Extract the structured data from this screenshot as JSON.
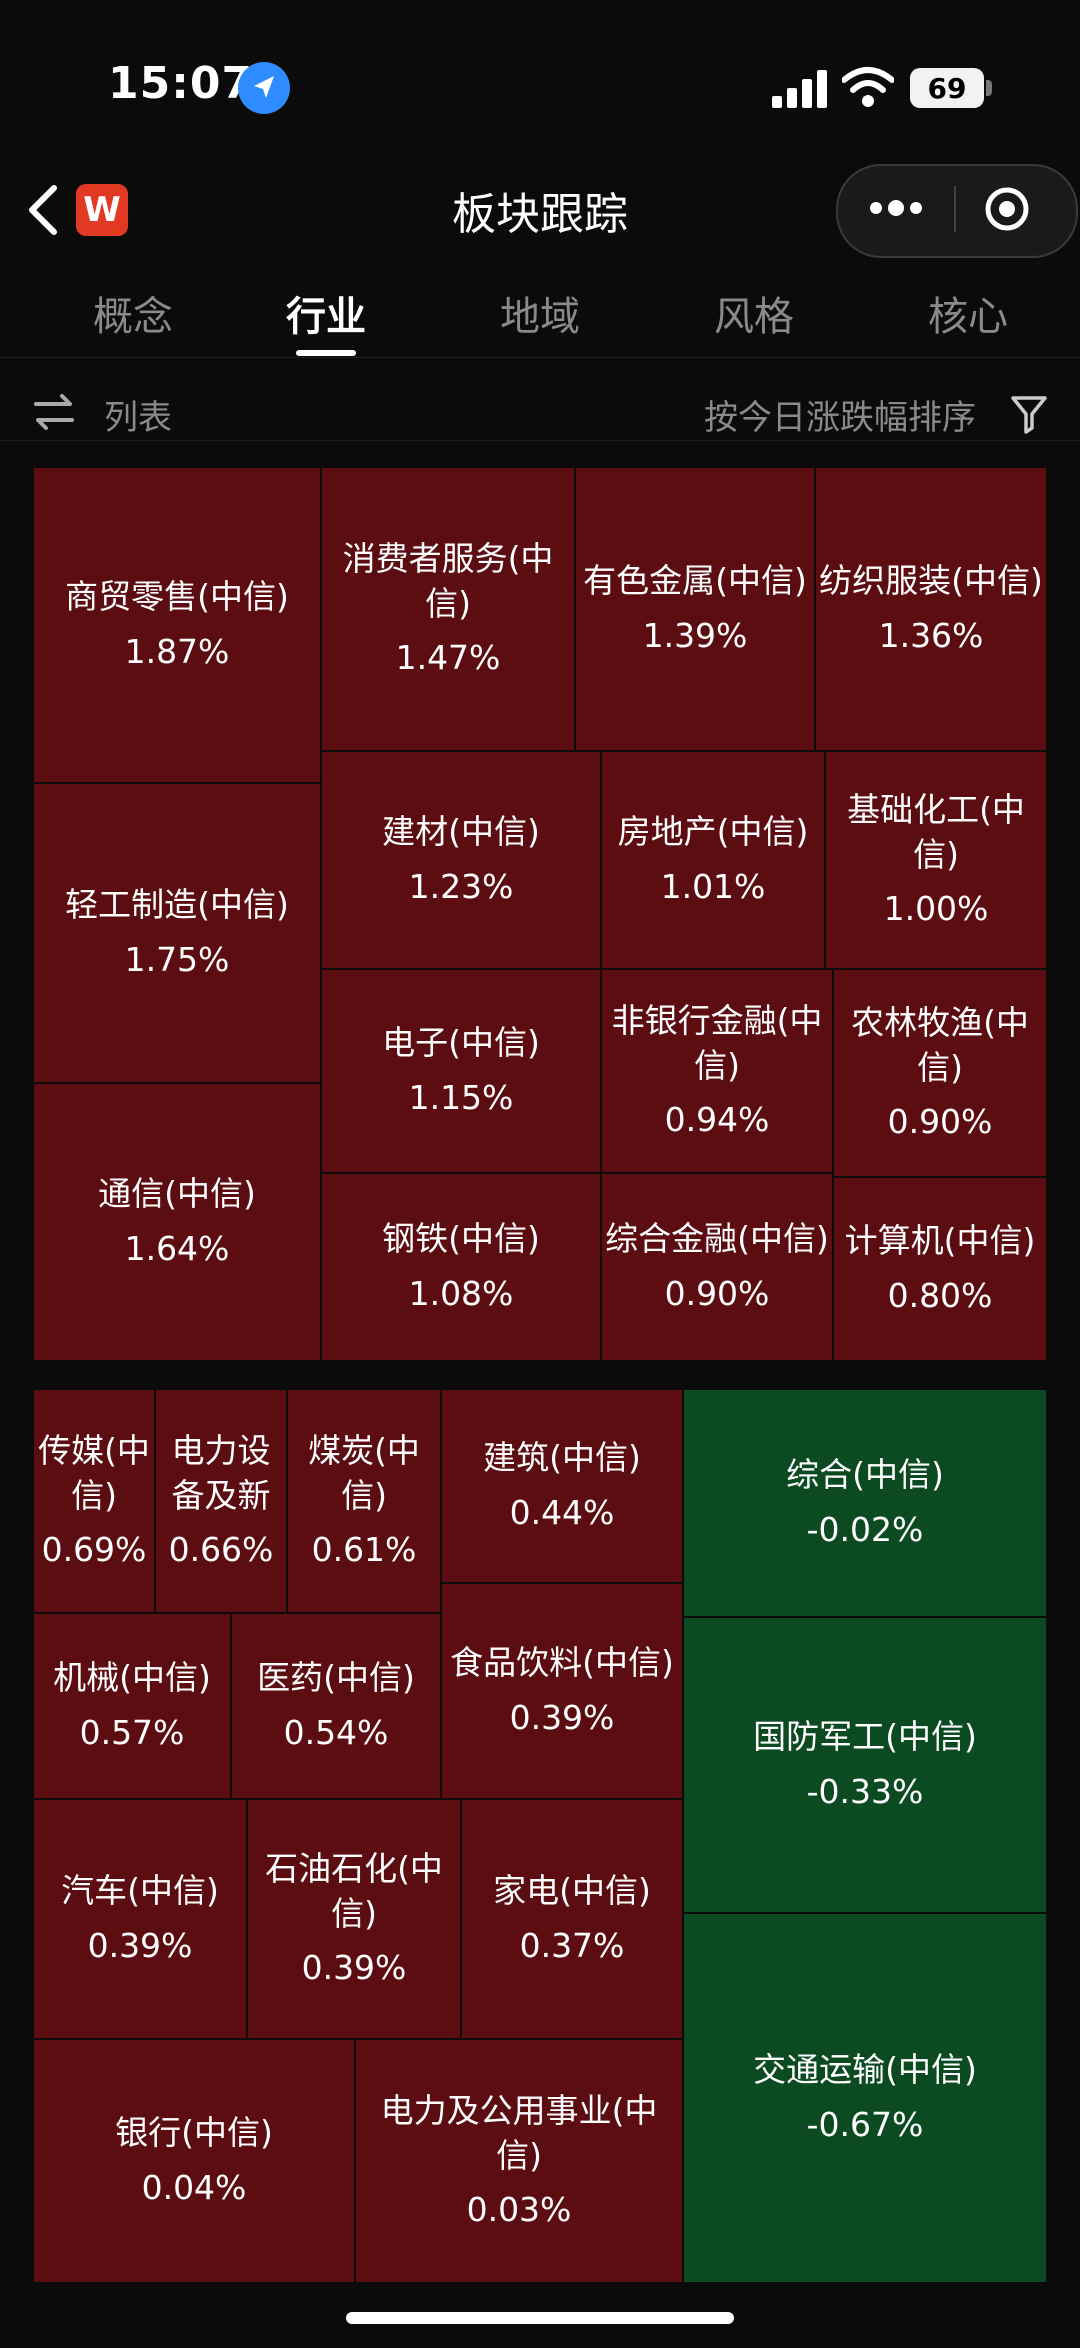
{
  "status_bar": {
    "time": "15:07",
    "battery": "69"
  },
  "nav": {
    "title": "板块跟踪",
    "logo_text": "W"
  },
  "tabs": [
    {
      "label": "概念",
      "active": false
    },
    {
      "label": "行业",
      "active": true
    },
    {
      "label": "地域",
      "active": false
    },
    {
      "label": "风格",
      "active": false
    },
    {
      "label": "核心",
      "active": false
    }
  ],
  "toolbar": {
    "list_label": "列表",
    "sort_label": "按今日涨跌幅排序"
  },
  "colors": {
    "up": "#5c0d12",
    "down": "#0c4a22",
    "background": "#0b0b0b"
  },
  "sectors": [
    {
      "name": "商贸零售(中信)",
      "change": "1.87%"
    },
    {
      "name": "消费者服务(中信)",
      "change": "1.47%"
    },
    {
      "name": "有色金属(中信)",
      "change": "1.39%"
    },
    {
      "name": "纺织服装(中信)",
      "change": "1.36%"
    },
    {
      "name": "轻工制造(中信)",
      "change": "1.75%"
    },
    {
      "name": "建材(中信)",
      "change": "1.23%"
    },
    {
      "name": "房地产(中信)",
      "change": "1.01%"
    },
    {
      "name": "基础化工(中信)",
      "change": "1.00%"
    },
    {
      "name": "电子(中信)",
      "change": "1.15%"
    },
    {
      "name": "非银行金融(中信)",
      "change": "0.94%"
    },
    {
      "name": "农林牧渔(中信)",
      "change": "0.90%"
    },
    {
      "name": "通信(中信)",
      "change": "1.64%"
    },
    {
      "name": "钢铁(中信)",
      "change": "1.08%"
    },
    {
      "name": "综合金融(中信)",
      "change": "0.90%"
    },
    {
      "name": "计算机(中信)",
      "change": "0.80%"
    },
    {
      "name": "传媒(中信)",
      "change": "0.69%"
    },
    {
      "name": "电力设备及新",
      "change": "0.66%"
    },
    {
      "name": "煤炭(中信)",
      "change": "0.61%"
    },
    {
      "name": "建筑(中信)",
      "change": "0.44%"
    },
    {
      "name": "综合(中信)",
      "change": "-0.02%"
    },
    {
      "name": "机械(中信)",
      "change": "0.57%"
    },
    {
      "name": "医药(中信)",
      "change": "0.54%"
    },
    {
      "name": "食品饮料(中信)",
      "change": "0.39%"
    },
    {
      "name": "国防军工(中信)",
      "change": "-0.33%"
    },
    {
      "name": "汽车(中信)",
      "change": "0.39%"
    },
    {
      "name": "石油石化(中信)",
      "change": "0.39%"
    },
    {
      "name": "家电(中信)",
      "change": "0.37%"
    },
    {
      "name": "交通运输(中信)",
      "change": "-0.67%"
    },
    {
      "name": "银行(中信)",
      "change": "0.04%"
    },
    {
      "name": "电力及公用事业(中信)",
      "change": "0.03%"
    }
  ]
}
